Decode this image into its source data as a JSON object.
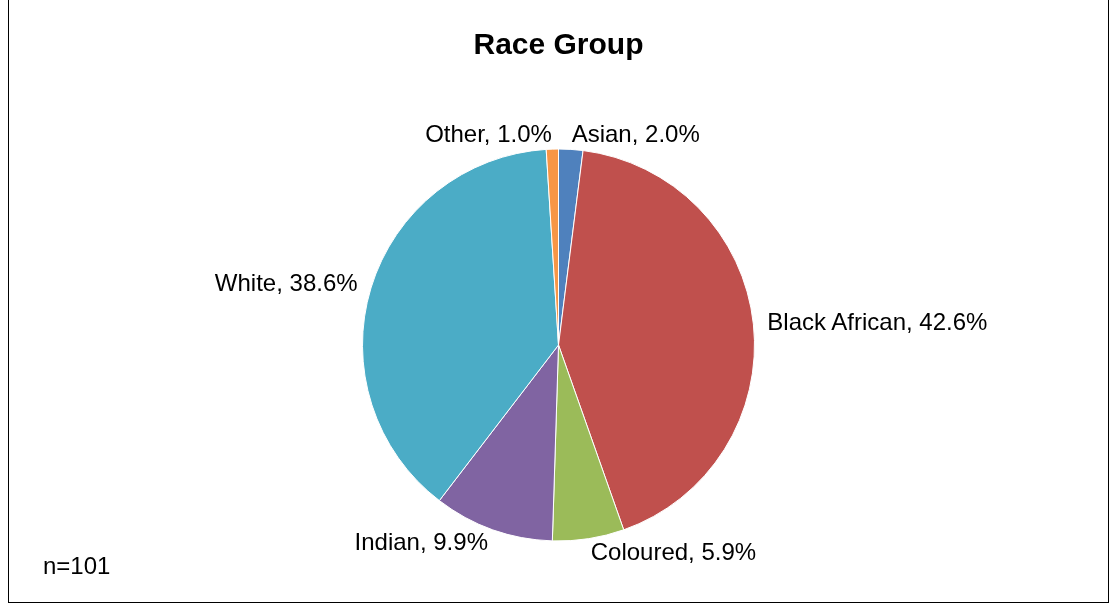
{
  "chart_data": {
    "type": "pie",
    "title": "Race Group",
    "categories": [
      "Asian",
      "Black African",
      "Coloured",
      "Indian",
      "White",
      "Other"
    ],
    "values": [
      2.0,
      42.6,
      5.9,
      9.9,
      38.6,
      1.0
    ],
    "value_labels": [
      "2.0%",
      "42.6%",
      "5.9%",
      "9.9%",
      "38.6%",
      "1.0%"
    ],
    "colors": [
      "#4f81bd",
      "#c0504d",
      "#9bbb59",
      "#8064a2",
      "#4bacc6",
      "#f79646"
    ],
    "annotations": [
      "n=101"
    ],
    "legend": false
  }
}
